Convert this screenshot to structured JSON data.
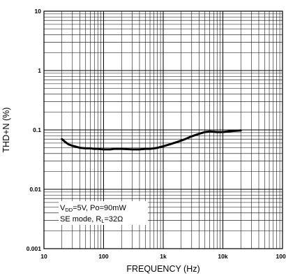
{
  "chart_data": {
    "type": "line",
    "title": "",
    "xlabel": "FREQUENCY (Hz)",
    "ylabel": "THD+N (%)",
    "xscale": "log",
    "yscale": "log",
    "xlim": [
      10,
      100000
    ],
    "ylim": [
      0.001,
      10
    ],
    "grid": true,
    "x_ticks": [
      "10",
      "100",
      "1k",
      "10k",
      "100k"
    ],
    "y_ticks": [
      "10",
      "1",
      "0.1",
      "0.01",
      "0.001"
    ],
    "annotation": {
      "line1_main": "V",
      "line1_sub": "DD",
      "line1_rest": "=5V, Po=90mW",
      "line2_main": "SE mode, R",
      "line2_sub": "L",
      "line2_rest": "=32Ω"
    },
    "series": [
      {
        "color": "#000000",
        "x": [
          20,
          23,
          26,
          30,
          35,
          40,
          50,
          60,
          70,
          80,
          100,
          130,
          150,
          200,
          300,
          400,
          500,
          600,
          700,
          800,
          1000,
          1200,
          1500,
          2000,
          2500,
          3000,
          4000,
          5000,
          6000,
          7000,
          8000,
          10000,
          12000,
          15000,
          20000
        ],
        "y": [
          0.07,
          0.062,
          0.057,
          0.054,
          0.052,
          0.05,
          0.049,
          0.049,
          0.048,
          0.048,
          0.047,
          0.047,
          0.048,
          0.048,
          0.047,
          0.047,
          0.048,
          0.048,
          0.049,
          0.05,
          0.053,
          0.056,
          0.06,
          0.066,
          0.072,
          0.078,
          0.086,
          0.092,
          0.094,
          0.093,
          0.092,
          0.092,
          0.094,
          0.096,
          0.098
        ]
      }
    ]
  }
}
